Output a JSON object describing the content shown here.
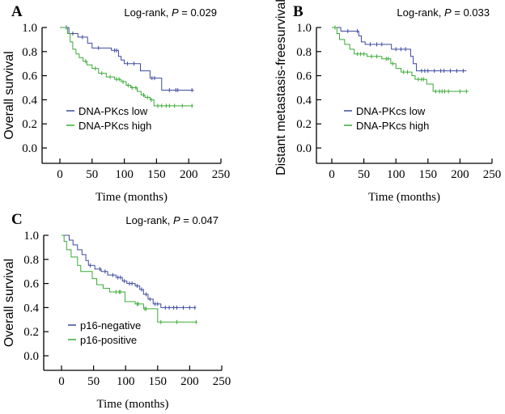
{
  "colors": {
    "series_blue": "#3c4a9e",
    "series_green": "#3aaa35"
  },
  "chart_data": [
    {
      "type": "line",
      "subtype": "kaplan-meier step",
      "panel_label": "A",
      "annotation": {
        "prefix": "Log-rank, ",
        "p_label": "P",
        "suffix": " = 0.029"
      },
      "xlabel": "Time (months)",
      "ylabel": "Overall survival",
      "xlim": [
        -25,
        250
      ],
      "ylim": [
        -0.13,
        1.0
      ],
      "xticks": [
        "0",
        "50",
        "100",
        "150",
        "200",
        "250"
      ],
      "yticks": [
        "0.0",
        "0.2",
        "0.4",
        "0.6",
        "0.8",
        "1.0"
      ],
      "legend_placement": "lower-left",
      "series": [
        {
          "name": "DNA-PKcs low",
          "color": "#3c4a9e",
          "steps": [
            [
              0,
              1.0
            ],
            [
              14,
              0.95
            ],
            [
              28,
              0.92
            ],
            [
              43,
              0.87
            ],
            [
              50,
              0.83
            ],
            [
              80,
              0.81
            ],
            [
              91,
              0.76
            ],
            [
              95,
              0.73
            ],
            [
              100,
              0.7
            ],
            [
              125,
              0.64
            ],
            [
              140,
              0.58
            ],
            [
              158,
              0.48
            ]
          ],
          "end": 208,
          "censored": [
            10,
            20,
            35,
            60,
            85,
            88,
            105,
            115,
            143,
            147,
            170,
            180,
            183,
            205
          ]
        },
        {
          "name": "DNA-PKcs high",
          "color": "#3aaa35",
          "steps": [
            [
              0,
              1.0
            ],
            [
              12,
              0.95
            ],
            [
              16,
              0.88
            ],
            [
              20,
              0.82
            ],
            [
              25,
              0.78
            ],
            [
              30,
              0.75
            ],
            [
              36,
              0.72
            ],
            [
              42,
              0.69
            ],
            [
              50,
              0.66
            ],
            [
              60,
              0.62
            ],
            [
              72,
              0.59
            ],
            [
              85,
              0.57
            ],
            [
              95,
              0.55
            ],
            [
              103,
              0.52
            ],
            [
              110,
              0.5
            ],
            [
              120,
              0.47
            ],
            [
              126,
              0.44
            ],
            [
              132,
              0.42
            ],
            [
              140,
              0.4
            ],
            [
              146,
              0.35
            ]
          ],
          "end": 207,
          "censored": [
            40,
            55,
            65,
            78,
            88,
            92,
            98,
            106,
            112,
            118,
            130,
            136,
            142,
            152,
            158,
            165,
            170,
            178,
            190,
            205
          ]
        }
      ]
    },
    {
      "type": "line",
      "subtype": "kaplan-meier step",
      "panel_label": "B",
      "annotation": {
        "prefix": "Log-rank, ",
        "p_label": "P",
        "suffix": " = 0.033"
      },
      "xlabel": "Time (months)",
      "ylabel": "Distant metastasis-freesurvival",
      "xlim": [
        -25,
        250
      ],
      "ylim": [
        -0.13,
        1.0
      ],
      "xticks": [
        "0",
        "50",
        "100",
        "150",
        "200",
        "250"
      ],
      "yticks": [
        "0.0",
        "0.2",
        "0.4",
        "0.6",
        "0.8",
        "1.0"
      ],
      "legend_placement": "lower-left",
      "series": [
        {
          "name": "DNA-PKcs low",
          "color": "#3c4a9e",
          "steps": [
            [
              0,
              1.0
            ],
            [
              14,
              0.97
            ],
            [
              42,
              0.93
            ],
            [
              46,
              0.88
            ],
            [
              52,
              0.86
            ],
            [
              93,
              0.82
            ],
            [
              123,
              0.76
            ],
            [
              127,
              0.7
            ],
            [
              132,
              0.64
            ]
          ],
          "end": 210,
          "censored": [
            25,
            40,
            60,
            70,
            78,
            100,
            108,
            115,
            140,
            145,
            150,
            160,
            170,
            175,
            185,
            195,
            205
          ]
        },
        {
          "name": "DNA-PKcs high",
          "color": "#3aaa35",
          "steps": [
            [
              0,
              1.0
            ],
            [
              8,
              0.95
            ],
            [
              12,
              0.9
            ],
            [
              20,
              0.86
            ],
            [
              28,
              0.82
            ],
            [
              35,
              0.78
            ],
            [
              55,
              0.76
            ],
            [
              78,
              0.74
            ],
            [
              92,
              0.7
            ],
            [
              100,
              0.66
            ],
            [
              108,
              0.63
            ],
            [
              125,
              0.6
            ],
            [
              130,
              0.57
            ],
            [
              148,
              0.53
            ],
            [
              158,
              0.47
            ]
          ],
          "end": 213,
          "censored": [
            5,
            40,
            45,
            50,
            62,
            70,
            85,
            88,
            95,
            112,
            118,
            135,
            140,
            143,
            162,
            168,
            172,
            176,
            182,
            200,
            210
          ]
        }
      ]
    },
    {
      "type": "line",
      "subtype": "kaplan-meier step",
      "panel_label": "C",
      "annotation": {
        "prefix": "Log-rank, ",
        "p_label": "P",
        "suffix": " = 0.047"
      },
      "xlabel": "Time (months)",
      "ylabel": "Overall survival",
      "xlim": [
        -25,
        250
      ],
      "ylim": [
        -0.13,
        1.0
      ],
      "xticks": [
        "0",
        "50",
        "100",
        "150",
        "200",
        "250"
      ],
      "yticks": [
        "0.0",
        "0.2",
        "0.4",
        "0.6",
        "0.8",
        "1.0"
      ],
      "legend_placement": "lower-left",
      "series": [
        {
          "name": "p16-negative",
          "color": "#3c4a9e",
          "steps": [
            [
              0,
              1.0
            ],
            [
              12,
              0.96
            ],
            [
              18,
              0.92
            ],
            [
              25,
              0.88
            ],
            [
              32,
              0.84
            ],
            [
              38,
              0.79
            ],
            [
              42,
              0.75
            ],
            [
              52,
              0.72
            ],
            [
              62,
              0.7
            ],
            [
              72,
              0.67
            ],
            [
              85,
              0.65
            ],
            [
              95,
              0.62
            ],
            [
              102,
              0.6
            ],
            [
              115,
              0.58
            ],
            [
              122,
              0.55
            ],
            [
              128,
              0.51
            ],
            [
              135,
              0.47
            ],
            [
              143,
              0.43
            ],
            [
              155,
              0.4
            ]
          ],
          "end": 210,
          "censored": [
            45,
            60,
            68,
            80,
            88,
            92,
            98,
            106,
            110,
            118,
            125,
            132,
            138,
            146,
            150,
            162,
            168,
            175,
            180,
            190,
            200,
            208
          ]
        },
        {
          "name": "p16-positive",
          "color": "#3aaa35",
          "steps": [
            [
              0,
              1.0
            ],
            [
              4,
              0.95
            ],
            [
              8,
              0.88
            ],
            [
              15,
              0.82
            ],
            [
              25,
              0.75
            ],
            [
              30,
              0.7
            ],
            [
              48,
              0.64
            ],
            [
              55,
              0.59
            ],
            [
              65,
              0.56
            ],
            [
              75,
              0.53
            ],
            [
              99,
              0.45
            ],
            [
              115,
              0.43
            ],
            [
              128,
              0.39
            ],
            [
              150,
              0.28
            ]
          ],
          "end": 212,
          "censored": [
            85,
            90,
            92,
            118,
            120,
            130,
            132,
            155,
            180,
            210
          ]
        }
      ]
    }
  ]
}
